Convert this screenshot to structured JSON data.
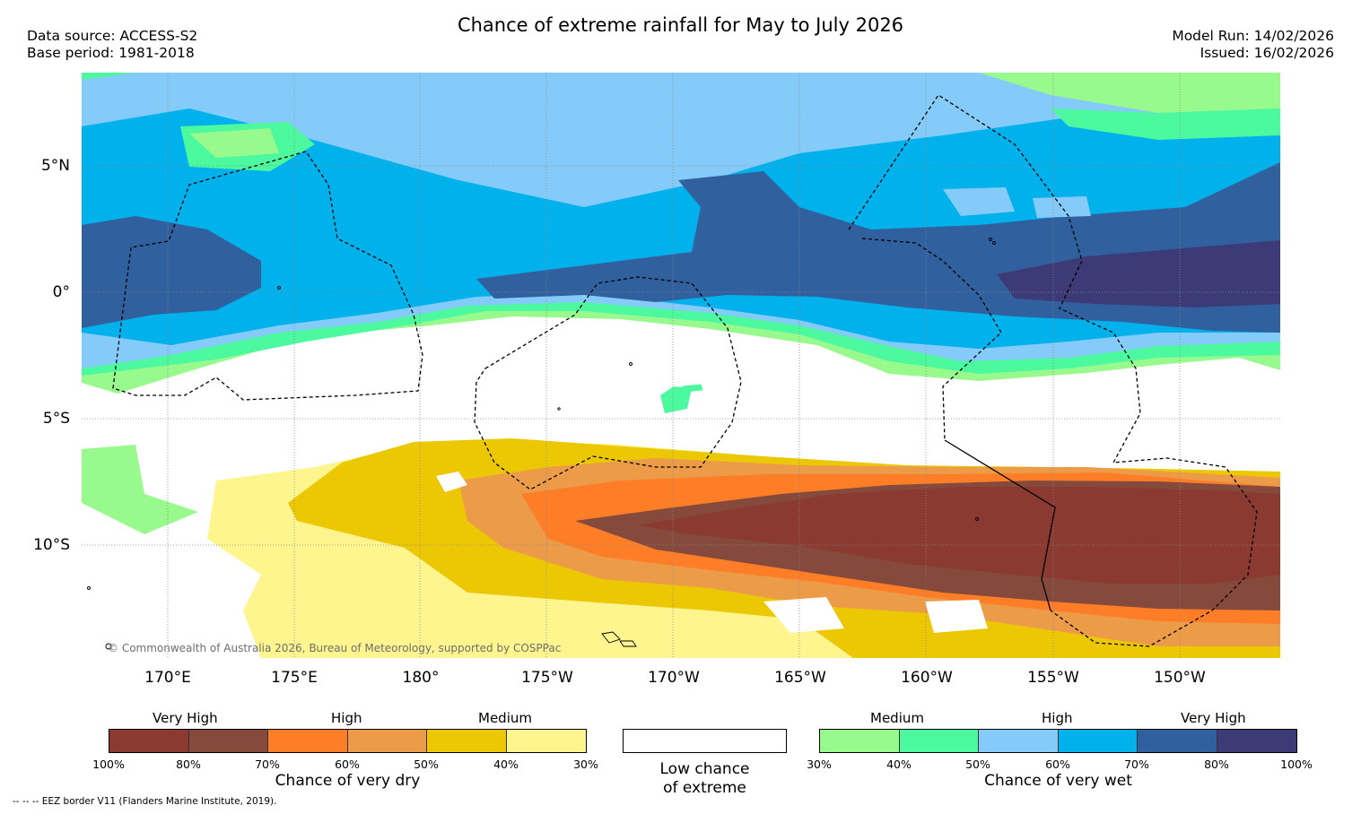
{
  "title": "Chance of extreme rainfall for May to July 2026",
  "meta": {
    "data_source": "Data source: ACCESS-S2",
    "base_period": "Base period: 1981-2018",
    "model_run": "Model Run: 14/02/2026",
    "issued": "Issued: 16/02/2026"
  },
  "map": {
    "lat_labels": [
      "5°N",
      "0°",
      "5°S",
      "10°S"
    ],
    "lon_labels": [
      "170°E",
      "175°E",
      "180°",
      "175°W",
      "170°W",
      "165°W",
      "160°W",
      "155°W",
      "150°W"
    ],
    "copyright": "© Commonwealth of Australia 2026, Bureau of Meteorology, supported by COSPPac"
  },
  "legend": {
    "dry": {
      "group_labels": [
        "Very High",
        "High",
        "Medium"
      ],
      "ticks": [
        "100%",
        "80%",
        "70%",
        "60%",
        "50%",
        "40%",
        "30%"
      ],
      "colors": [
        "#8b3a32",
        "#854a3c",
        "#fe7e27",
        "#ec9b48",
        "#ecc703",
        "#fef58f"
      ],
      "caption": "Chance of very dry"
    },
    "neutral": {
      "caption_line1": "Low chance",
      "caption_line2": "of extreme",
      "color": "#ffffff"
    },
    "wet": {
      "group_labels": [
        "Medium",
        "High",
        "Very High"
      ],
      "ticks": [
        "30%",
        "40%",
        "50%",
        "60%",
        "70%",
        "80%",
        "100%"
      ],
      "colors": [
        "#98f98d",
        "#4cf99e",
        "#85cbfa",
        "#01b1ec",
        "#31609e",
        "#3d3b77"
      ],
      "caption": "Chance of very wet"
    }
  },
  "eez_note": "--  --  -- EEZ border V11 (Flanders Marine Institute, 2019)."
}
